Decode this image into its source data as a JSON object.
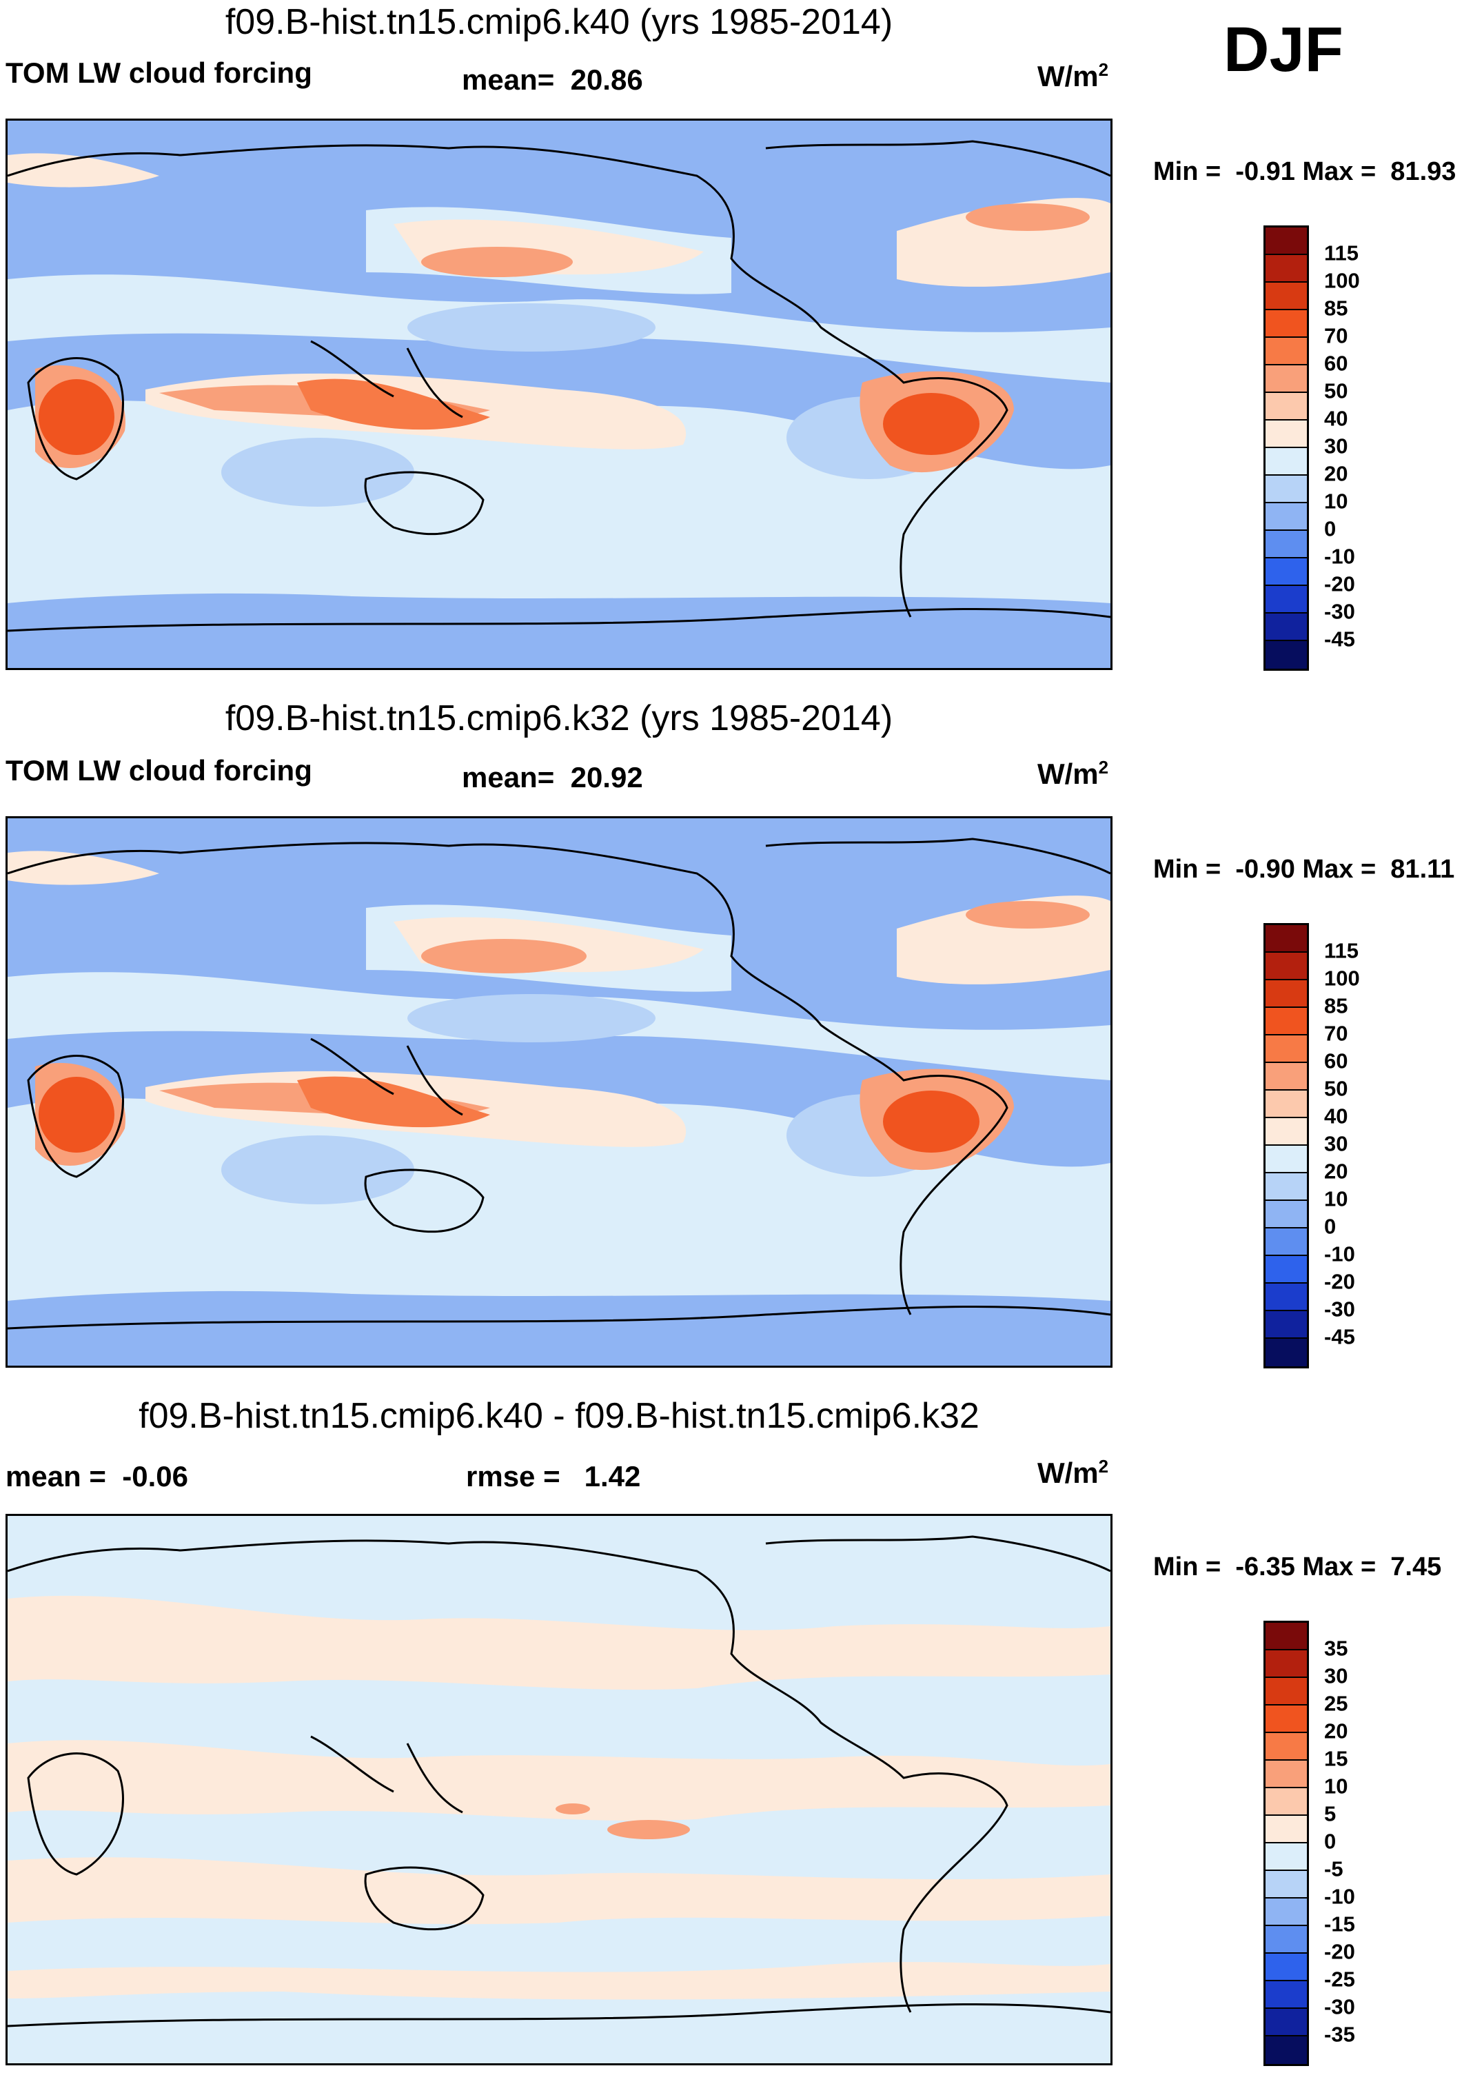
{
  "season": "DJF",
  "units_base": "W/m",
  "units_exp": "2",
  "panels": [
    {
      "title": "f09.B-hist.tn15.cmip6.k40 (yrs 1985-2014)",
      "variable": "TOM LW cloud forcing",
      "stat_label": "mean=",
      "stat_value": "20.86",
      "min_label": "Min =",
      "min_value": "-0.91",
      "max_label": "Max =",
      "max_value": "81.93",
      "colorbar_labels": [
        "115",
        "100",
        "85",
        "70",
        "60",
        "50",
        "40",
        "30",
        "20",
        "10",
        "0",
        "-10",
        "-20",
        "-30",
        "-45"
      ],
      "colorbar_colors": [
        "#7a0a0a",
        "#b3200e",
        "#d83a12",
        "#f0541f",
        "#f77a46",
        "#f9a07a",
        "#fcc9ad",
        "#fdeadb",
        "#dceefa",
        "#b7d3f7",
        "#8fb4f3",
        "#5e8ef0",
        "#2e62ec",
        "#1b3dcc",
        "#10229e",
        "#060d5e"
      ]
    },
    {
      "title": "f09.B-hist.tn15.cmip6.k32 (yrs 1985-2014)",
      "variable": "TOM LW cloud forcing",
      "stat_label": "mean=",
      "stat_value": "20.92",
      "min_label": "Min =",
      "min_value": "-0.90",
      "max_label": "Max =",
      "max_value": "81.11",
      "colorbar_labels": [
        "115",
        "100",
        "85",
        "70",
        "60",
        "50",
        "40",
        "30",
        "20",
        "10",
        "0",
        "-10",
        "-20",
        "-30",
        "-45"
      ],
      "colorbar_colors": [
        "#7a0a0a",
        "#b3200e",
        "#d83a12",
        "#f0541f",
        "#f77a46",
        "#f9a07a",
        "#fcc9ad",
        "#fdeadb",
        "#dceefa",
        "#b7d3f7",
        "#8fb4f3",
        "#5e8ef0",
        "#2e62ec",
        "#1b3dcc",
        "#10229e",
        "#060d5e"
      ]
    },
    {
      "title": "f09.B-hist.tn15.cmip6.k40 - f09.B-hist.tn15.cmip6.k32",
      "stat_label": "mean =",
      "stat_value": "-0.06",
      "stat2_label": "rmse =",
      "stat2_value": "1.42",
      "min_label": "Min =",
      "min_value": "-6.35",
      "max_label": "Max =",
      "max_value": "7.45",
      "colorbar_labels": [
        "35",
        "30",
        "25",
        "20",
        "15",
        "10",
        "5",
        "0",
        "-5",
        "-10",
        "-15",
        "-20",
        "-25",
        "-30",
        "-35"
      ],
      "colorbar_colors": [
        "#7a0a0a",
        "#b3200e",
        "#d83a12",
        "#f0541f",
        "#f77a46",
        "#f9a07a",
        "#fcc9ad",
        "#fdeadb",
        "#dceefa",
        "#b7d3f7",
        "#8fb4f3",
        "#5e8ef0",
        "#2e62ec",
        "#1b3dcc",
        "#10229e",
        "#060d5e"
      ]
    }
  ],
  "map_palette": {
    "ocean_blue": "#8fb4f3",
    "pale_blue": "#dceefa",
    "light_blue": "#b7d3f7",
    "peach": "#fdeadb",
    "salmon": "#f9a07a",
    "orange": "#f77a46",
    "deep_orange": "#f0541f",
    "blue_dark": "#5e8ef0"
  }
}
